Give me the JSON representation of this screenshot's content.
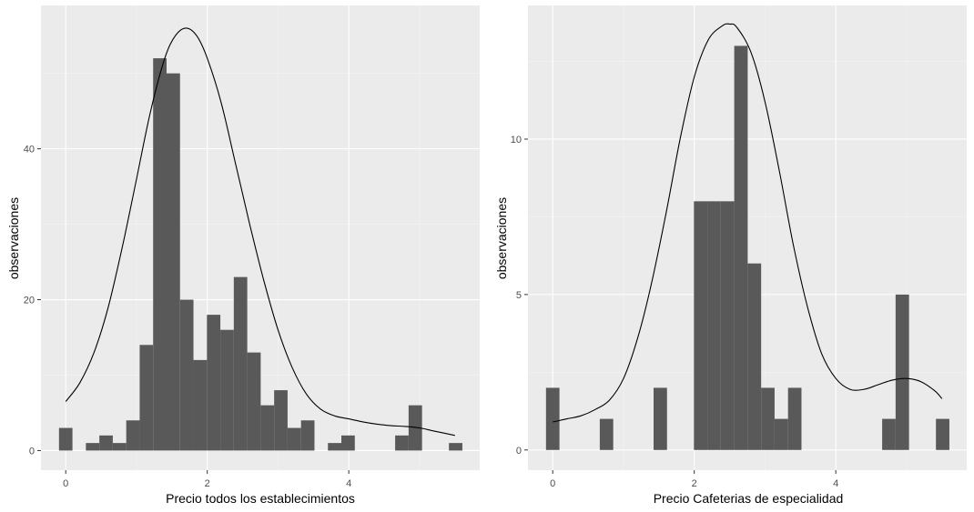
{
  "colors": {
    "panel_background": "#ebebeb",
    "grid_major": "#ffffff",
    "grid_minor": "#f3f3f3",
    "bar_fill": "#595959",
    "curve": "#000000",
    "tick_text": "#4d4d4d",
    "tick_mark": "#333333"
  },
  "chart_data": [
    {
      "type": "bar",
      "subtype": "histogram_with_density_curve",
      "xlabel": "Precio todos los establecimientos",
      "ylabel": "observaciones",
      "xlim": [
        -0.35,
        5.85
      ],
      "ylim": [
        -2.6,
        59
      ],
      "x_ticks": [
        0,
        2,
        4
      ],
      "y_ticks": [
        0,
        20,
        40
      ],
      "grid": true,
      "bin_width": 0.19,
      "bins": [
        {
          "x": 0.0,
          "count": 3
        },
        {
          "x": 0.38,
          "count": 1
        },
        {
          "x": 0.57,
          "count": 2
        },
        {
          "x": 0.76,
          "count": 1
        },
        {
          "x": 0.95,
          "count": 4
        },
        {
          "x": 1.14,
          "count": 14
        },
        {
          "x": 1.33,
          "count": 52
        },
        {
          "x": 1.52,
          "count": 50
        },
        {
          "x": 1.71,
          "count": 20
        },
        {
          "x": 1.9,
          "count": 12
        },
        {
          "x": 2.09,
          "count": 18
        },
        {
          "x": 2.28,
          "count": 16
        },
        {
          "x": 2.47,
          "count": 23
        },
        {
          "x": 2.66,
          "count": 13
        },
        {
          "x": 2.85,
          "count": 6
        },
        {
          "x": 3.04,
          "count": 8
        },
        {
          "x": 3.23,
          "count": 3
        },
        {
          "x": 3.42,
          "count": 4
        },
        {
          "x": 3.8,
          "count": 1
        },
        {
          "x": 3.99,
          "count": 2
        },
        {
          "x": 4.75,
          "count": 2
        },
        {
          "x": 4.94,
          "count": 6
        },
        {
          "x": 5.51,
          "count": 1
        }
      ],
      "curve": {
        "x": [
          0,
          0.2,
          0.4,
          0.6,
          0.8,
          1.0,
          1.2,
          1.4,
          1.55,
          1.7,
          1.85,
          2.0,
          2.2,
          2.4,
          2.6,
          2.8,
          3.0,
          3.2,
          3.4,
          3.6,
          3.8,
          4.0,
          4.2,
          4.4,
          4.6,
          4.8,
          5.0,
          5.2,
          5.5
        ],
        "y": [
          6.5,
          9,
          13,
          19,
          27,
          36,
          45,
          52,
          55,
          56,
          55,
          52,
          46,
          38,
          30,
          22.5,
          16,
          11,
          7.5,
          5.5,
          4.6,
          4.2,
          3.8,
          3.5,
          3.3,
          3.2,
          3.0,
          2.6,
          2.0
        ]
      }
    },
    {
      "type": "bar",
      "subtype": "histogram_with_density_curve",
      "xlabel": "Precio Cafeterias de especialidad",
      "ylabel": "observaciones",
      "xlim": [
        -0.35,
        5.85
      ],
      "ylim": [
        -0.65,
        14.3
      ],
      "x_ticks": [
        0,
        2,
        4
      ],
      "y_ticks": [
        0,
        5,
        10
      ],
      "grid": true,
      "bin_width": 0.19,
      "bins": [
        {
          "x": 0.0,
          "count": 2
        },
        {
          "x": 0.76,
          "count": 1
        },
        {
          "x": 1.52,
          "count": 2
        },
        {
          "x": 2.09,
          "count": 8
        },
        {
          "x": 2.28,
          "count": 8
        },
        {
          "x": 2.47,
          "count": 8
        },
        {
          "x": 2.66,
          "count": 13
        },
        {
          "x": 2.85,
          "count": 6
        },
        {
          "x": 3.04,
          "count": 2
        },
        {
          "x": 3.23,
          "count": 1
        },
        {
          "x": 3.42,
          "count": 2
        },
        {
          "x": 4.75,
          "count": 1
        },
        {
          "x": 4.94,
          "count": 5
        },
        {
          "x": 5.51,
          "count": 1
        }
      ],
      "curve": {
        "x": [
          0,
          0.2,
          0.4,
          0.6,
          0.8,
          1.0,
          1.2,
          1.4,
          1.6,
          1.8,
          2.0,
          2.2,
          2.4,
          2.5,
          2.6,
          2.8,
          3.0,
          3.2,
          3.4,
          3.6,
          3.8,
          4.0,
          4.2,
          4.4,
          4.6,
          4.8,
          5.0,
          5.2,
          5.4,
          5.5
        ],
        "y": [
          0.9,
          1.0,
          1.1,
          1.3,
          1.6,
          2.3,
          3.6,
          5.4,
          7.6,
          10.0,
          12.0,
          13.2,
          13.65,
          13.7,
          13.6,
          12.8,
          11.2,
          9.0,
          6.6,
          4.6,
          3.1,
          2.3,
          1.95,
          1.95,
          2.1,
          2.25,
          2.3,
          2.2,
          1.9,
          1.65
        ]
      }
    }
  ]
}
